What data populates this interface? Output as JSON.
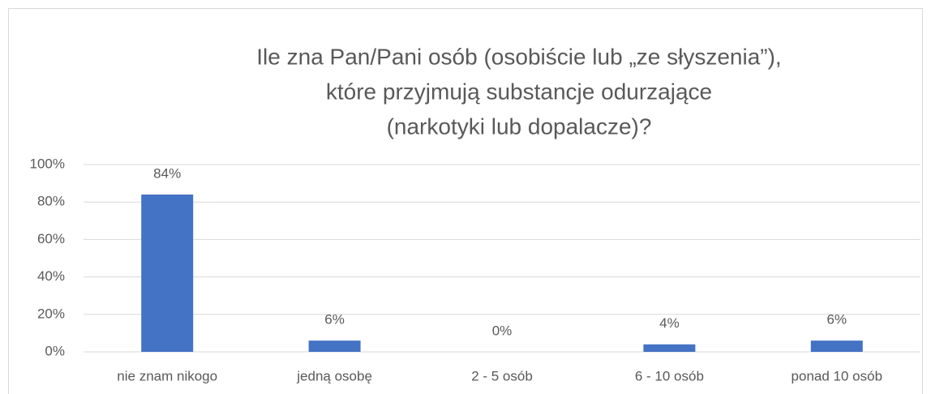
{
  "chart_data": {
    "type": "bar",
    "title": [
      "Ile zna Pan/Pani osób (osobiście lub „ze słyszenia”),",
      "które przyjmują substancje odurzające",
      "(narkotyki lub dopalacze)?"
    ],
    "categories": [
      "nie znam nikogo",
      "jedną osobę",
      "2 - 5 osób",
      "6 - 10 osób",
      "ponad 10 osób"
    ],
    "values": [
      84,
      6,
      0,
      4,
      6
    ],
    "value_labels": [
      "84%",
      "6%",
      "0%",
      "4%",
      "6%"
    ],
    "color": "#4472c4",
    "ylim": [
      0,
      100
    ],
    "yticks": [
      {
        "value": 0,
        "label": "0%"
      },
      {
        "value": 20,
        "label": "20%"
      },
      {
        "value": 40,
        "label": "40%"
      },
      {
        "value": 60,
        "label": "60%"
      },
      {
        "value": 80,
        "label": "80%"
      },
      {
        "value": 100,
        "label": "100%"
      }
    ],
    "grid": true
  }
}
